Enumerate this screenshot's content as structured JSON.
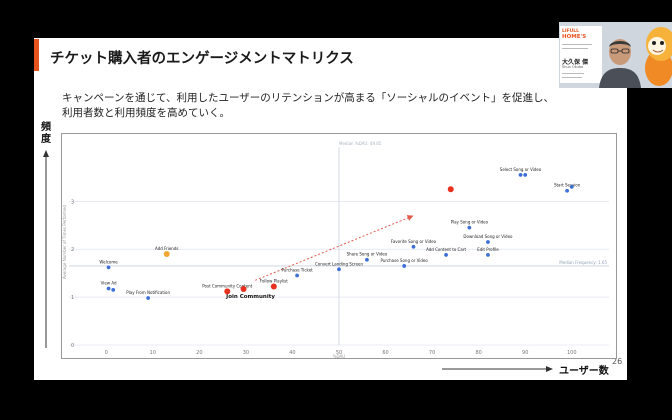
{
  "slide": {
    "title": "チケット購入者のエンゲージメントマトリクス",
    "description_line1": "キャンペーンを通じて、利用したユーザーのリテンションが高まる「ソーシャルのイベント」を促進し、",
    "description_line2": "利用者数と利用頻度を高めていく。",
    "y_label": "頻度",
    "x_label": "ユーザー数",
    "page_number": "26"
  },
  "speaker_card": {
    "logo_text": "LIFULL",
    "brand_text": "HOME'S",
    "name": "大久保 傑",
    "name_roman": "Shun Okubo"
  },
  "chart_data": {
    "type": "scatter",
    "title": "",
    "xlabel": "%DAU",
    "ylabel": "Average Number of Times Performed",
    "xlim": [
      -8,
      108
    ],
    "ylim": [
      0,
      4.3
    ],
    "x_ticks": [
      0,
      10,
      20,
      30,
      40,
      50,
      60,
      70,
      80,
      90,
      100
    ],
    "y_ticks": [
      0,
      1,
      2,
      3
    ],
    "median_x": 50,
    "median_y": 1.65,
    "median_x_label": "Median %DAU: 49.85",
    "median_y_label": "Median Frequency: 1.65",
    "highlight_label": "Join Community",
    "points": [
      {
        "label": "Welcome",
        "x": 0.5,
        "y": 1.62,
        "color": "#3d6fd6"
      },
      {
        "label": "View Ad",
        "x": 0.5,
        "y": 1.18,
        "color": "#3d6fd6"
      },
      {
        "label": "",
        "x": 1.5,
        "y": 1.15,
        "color": "#3d6fd6"
      },
      {
        "label": "Play From Notification",
        "x": 9,
        "y": 0.98,
        "color": "#3d6fd6"
      },
      {
        "label": "Add Friends",
        "x": 13,
        "y": 1.9,
        "color": "#f0a830"
      },
      {
        "label": "Post Community Content",
        "x": 26,
        "y": 1.12,
        "color": "#e8301e"
      },
      {
        "label": "",
        "x": 29.5,
        "y": 1.17,
        "color": "#e8301e"
      },
      {
        "label": "Follow Playlist",
        "x": 36,
        "y": 1.22,
        "color": "#e8301e"
      },
      {
        "label": "Purchase Ticket",
        "x": 41,
        "y": 1.45,
        "color": "#3d6fd6"
      },
      {
        "label": "Convert Landing Screen",
        "x": 50,
        "y": 1.58,
        "color": "#3d6fd6"
      },
      {
        "label": "Share Song or Video",
        "x": 56,
        "y": 1.78,
        "color": "#3d6fd6"
      },
      {
        "label": "Purchase Song or Video",
        "x": 64,
        "y": 1.65,
        "color": "#3d6fd6"
      },
      {
        "label": "Favorite Song or Video",
        "x": 66,
        "y": 2.05,
        "color": "#3d6fd6"
      },
      {
        "label": "Add Content to Cart",
        "x": 73,
        "y": 1.88,
        "color": "#3d6fd6"
      },
      {
        "label": "",
        "x": 74,
        "y": 3.25,
        "color": "#e8301e"
      },
      {
        "label": "Play Song or Video",
        "x": 78,
        "y": 2.45,
        "color": "#3d6fd6"
      },
      {
        "label": "Edit Profile",
        "x": 82,
        "y": 1.88,
        "color": "#3d6fd6"
      },
      {
        "label": "Download Song or Video",
        "x": 82,
        "y": 2.15,
        "color": "#3d6fd6"
      },
      {
        "label": "Select Song or Video",
        "x": 89,
        "y": 3.55,
        "color": "#3d6fd6"
      },
      {
        "label": "",
        "x": 90,
        "y": 3.55,
        "color": "#3d6fd6"
      },
      {
        "label": "Start Session",
        "x": 99,
        "y": 3.22,
        "color": "#3d6fd6"
      },
      {
        "label": "",
        "x": 100,
        "y": 3.3,
        "color": "#3d6fd6"
      }
    ],
    "growth_arrow": {
      "from": [
        32,
        1.35
      ],
      "to": [
        66,
        2.7
      ]
    }
  }
}
